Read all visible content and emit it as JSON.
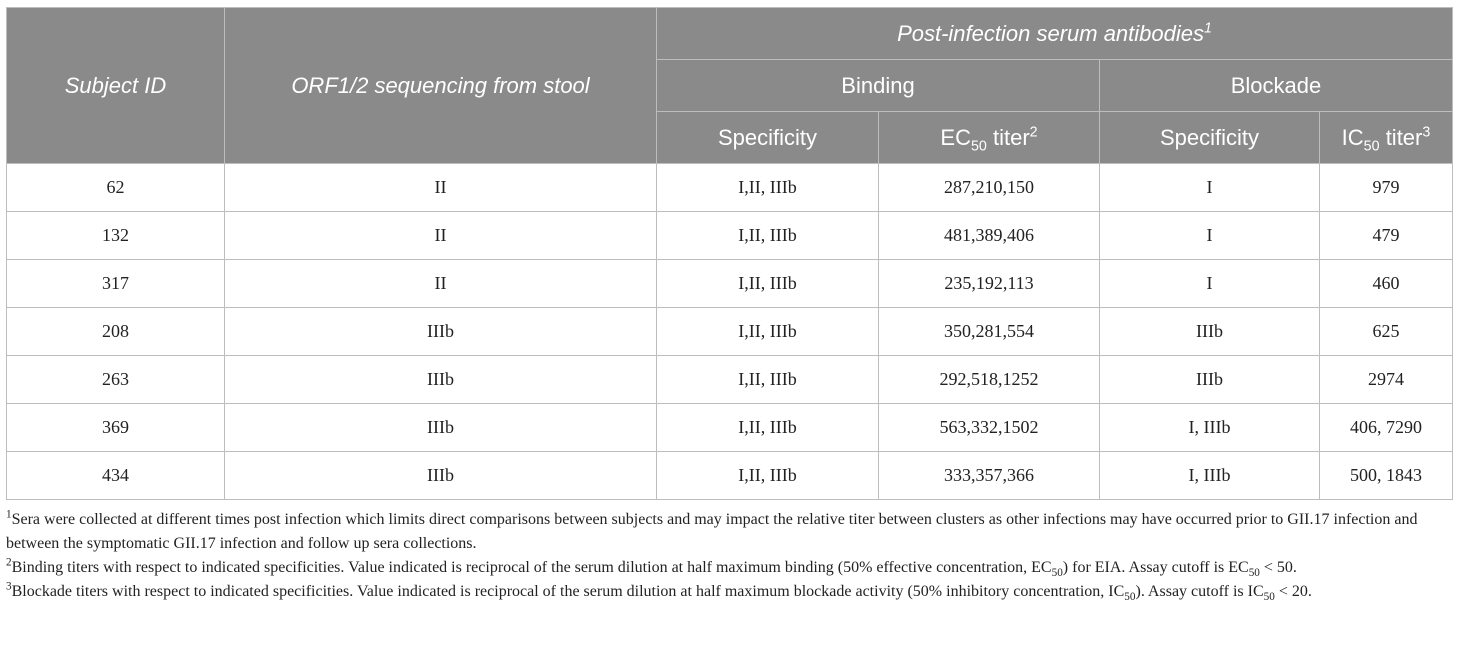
{
  "header": {
    "subject_id": "Subject ID",
    "orf": "ORF1/2 sequencing from stool",
    "post_infection": "Post-infection serum antibodies",
    "post_infection_note": "1",
    "binding": "Binding",
    "blockade": "Blockade",
    "specificity_binding": "Specificity",
    "ec_prefix": "EC",
    "ec_sub": "50",
    "ec_suffix": " titer",
    "ec_note": "2",
    "specificity_blockade": "Specificity",
    "ic_prefix": "IC",
    "ic_sub": "50",
    "ic_suffix": " titer",
    "ic_note": "3"
  },
  "rows": [
    {
      "id": "62",
      "orf": "II",
      "bind_spec": "I,II, IIIb",
      "ec50": "287,210,150",
      "block_spec": "I",
      "ic50": "979"
    },
    {
      "id": "132",
      "orf": "II",
      "bind_spec": "I,II, IIIb",
      "ec50": "481,389,406",
      "block_spec": "I",
      "ic50": "479"
    },
    {
      "id": "317",
      "orf": "II",
      "bind_spec": "I,II, IIIb",
      "ec50": "235,192,113",
      "block_spec": "I",
      "ic50": "460"
    },
    {
      "id": "208",
      "orf": "IIIb",
      "bind_spec": "I,II, IIIb",
      "ec50": "350,281,554",
      "block_spec": "IIIb",
      "ic50": "625"
    },
    {
      "id": "263",
      "orf": "IIIb",
      "bind_spec": "I,II, IIIb",
      "ec50": "292,518,1252",
      "block_spec": "IIIb",
      "ic50": "2974"
    },
    {
      "id": "369",
      "orf": "IIIb",
      "bind_spec": "I,II, IIIb",
      "ec50": "563,332,1502",
      "block_spec": "I, IIIb",
      "ic50": "406, 7290"
    },
    {
      "id": "434",
      "orf": "IIIb",
      "bind_spec": "I,II, IIIb",
      "ec50": "333,357,366",
      "block_spec": "I, IIIb",
      "ic50": "500, 1843"
    }
  ],
  "footnotes": {
    "fn1_mark": "1",
    "fn1_text": "Sera were collected at different times post infection which limits direct comparisons between subjects and may impact the relative titer between clusters as other infections may have occurred prior to GII.17 infection and between the symptomatic GII.17 infection and follow up sera collections.",
    "fn2_mark": "2",
    "fn2_text_a": "Binding titers with respect to indicated specificities. Value indicated is reciprocal of the serum dilution at half maximum binding (50% effective concentration, EC",
    "fn2_sub_a": "50",
    "fn2_text_b": ") for EIA. Assay cutoff is EC",
    "fn2_sub_b": "50",
    "fn2_text_c": " < 50.",
    "fn3_mark": "3",
    "fn3_text_a": "Blockade titers with respect to indicated specificities. Value indicated is reciprocal of the serum dilution at half maximum blockade activity (50% inhibitory concentration, IC",
    "fn3_sub_a": "50",
    "fn3_text_b": "). Assay cutoff is IC",
    "fn3_sub_b": "50",
    "fn3_text_c": " < 20."
  }
}
